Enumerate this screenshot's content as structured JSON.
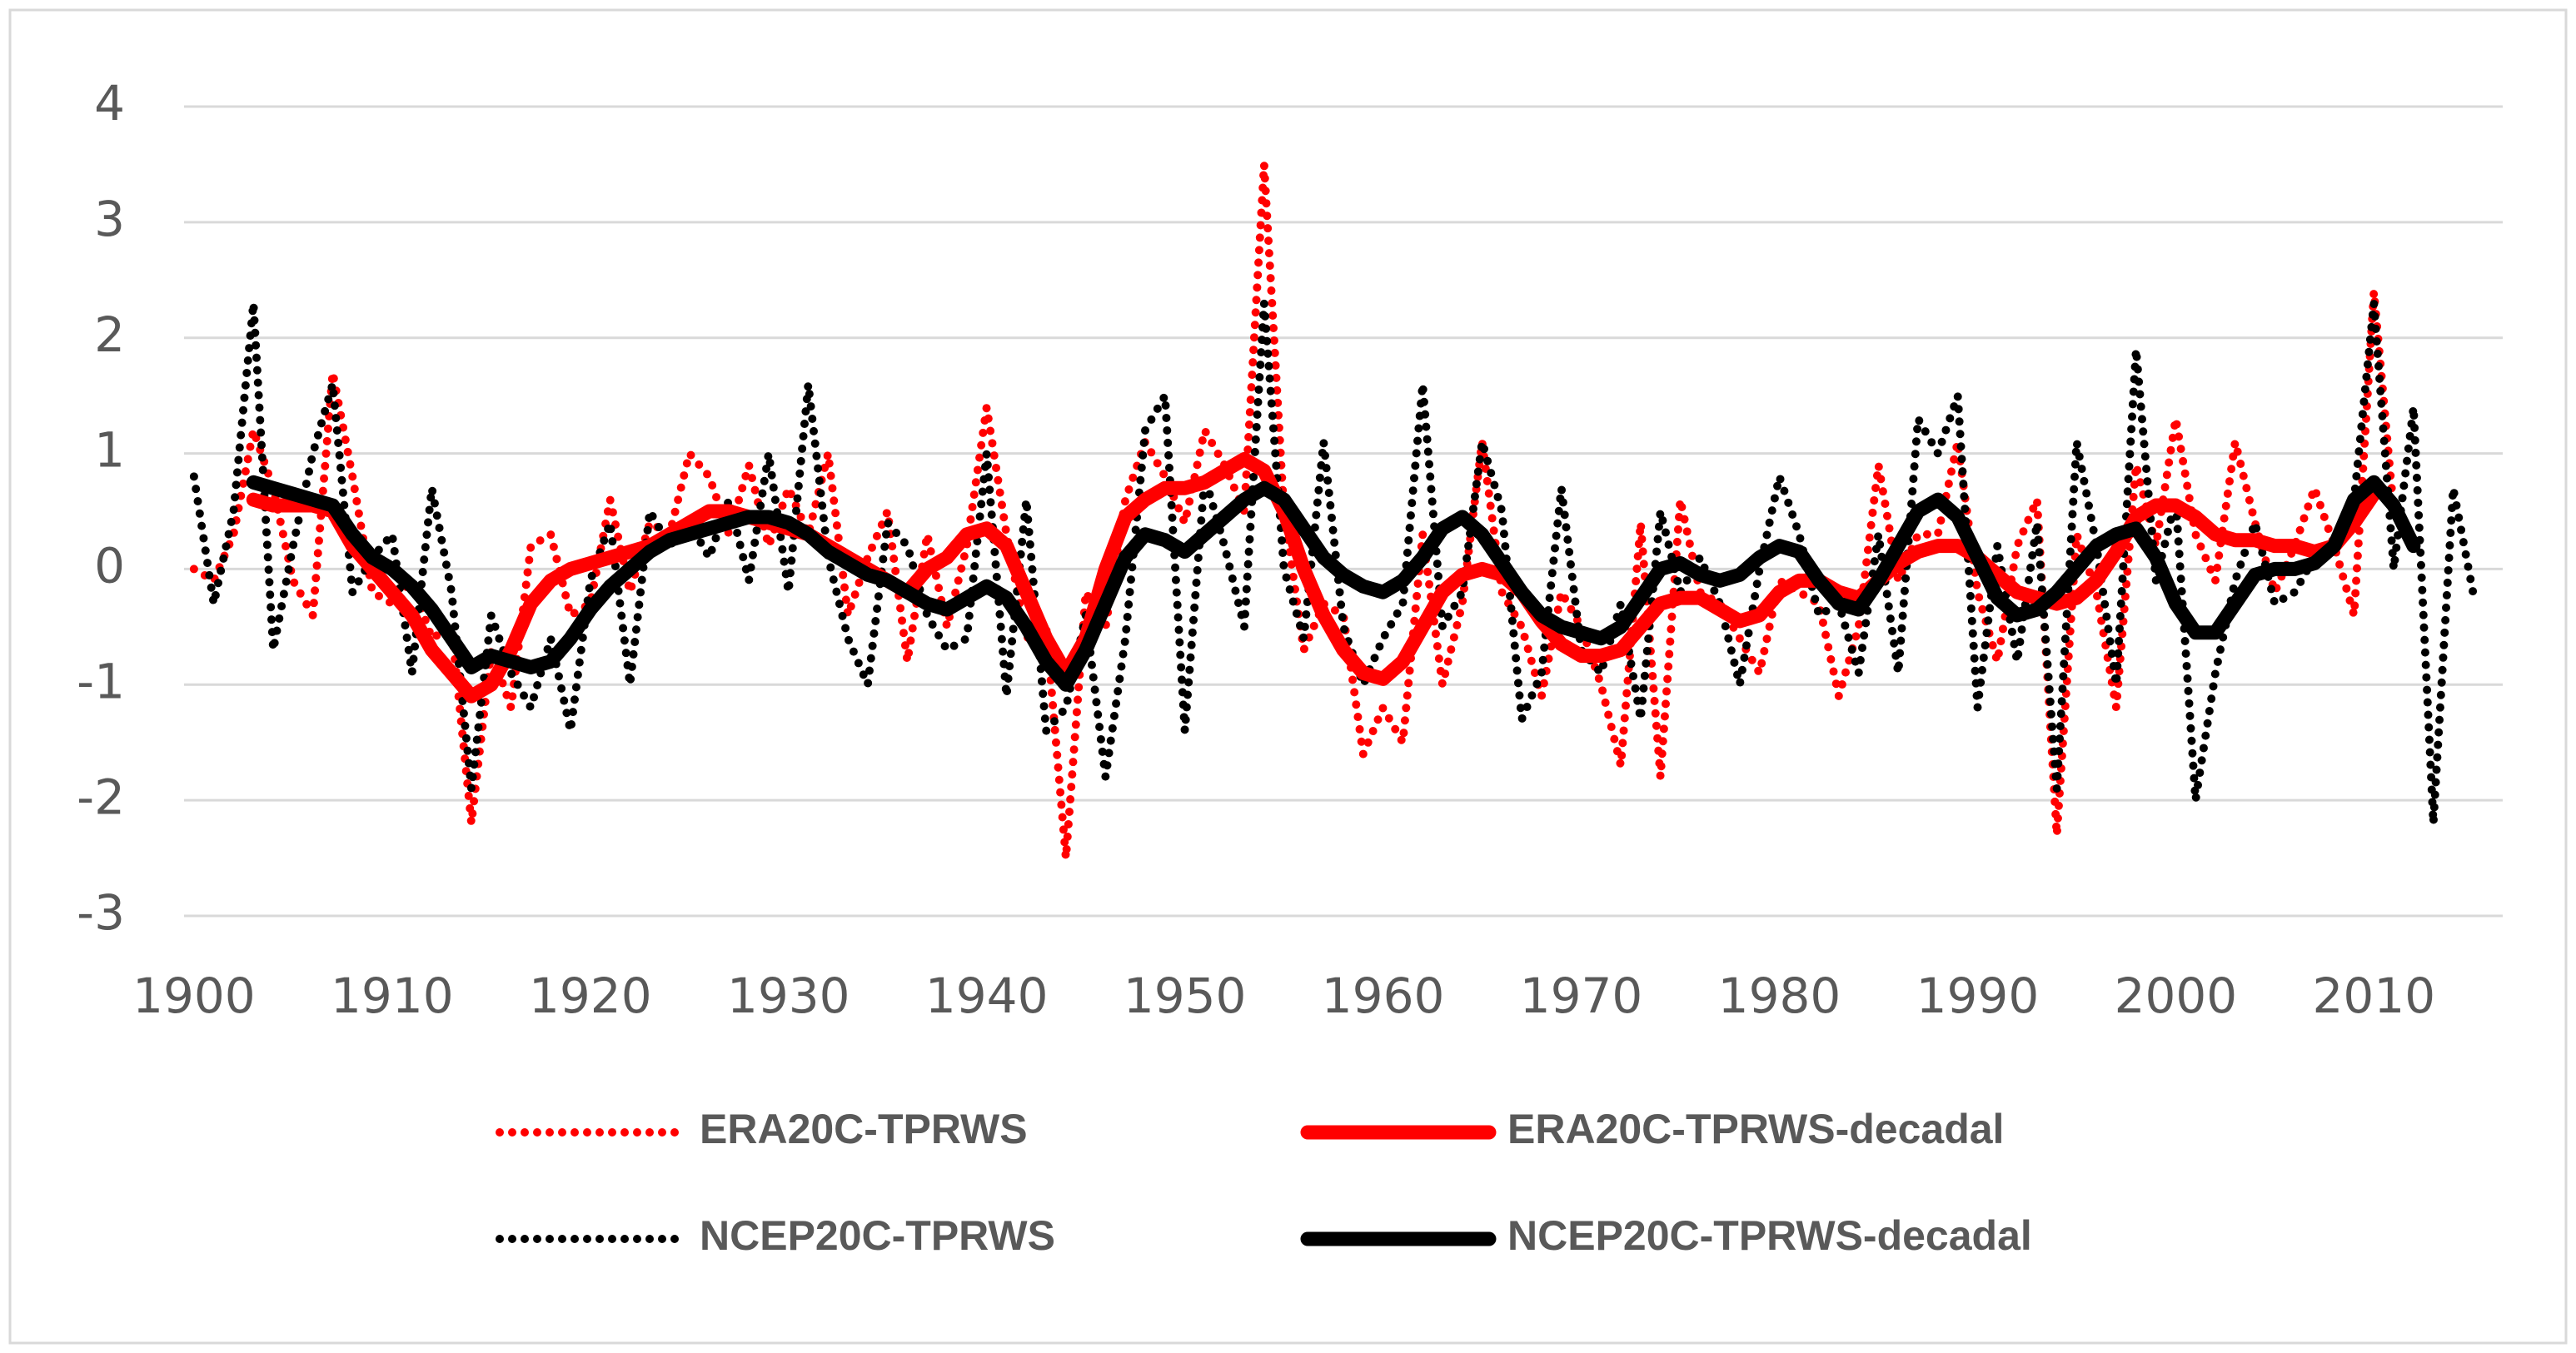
{
  "chart_data": {
    "type": "line",
    "x": [
      1900,
      1901,
      1902,
      1903,
      1904,
      1905,
      1906,
      1907,
      1908,
      1909,
      1910,
      1911,
      1912,
      1913,
      1914,
      1915,
      1916,
      1917,
      1918,
      1919,
      1920,
      1921,
      1922,
      1923,
      1924,
      1925,
      1926,
      1927,
      1928,
      1929,
      1930,
      1931,
      1932,
      1933,
      1934,
      1935,
      1936,
      1937,
      1938,
      1939,
      1940,
      1941,
      1942,
      1943,
      1944,
      1945,
      1946,
      1947,
      1948,
      1949,
      1950,
      1951,
      1952,
      1953,
      1954,
      1955,
      1956,
      1957,
      1958,
      1959,
      1960,
      1961,
      1962,
      1963,
      1964,
      1965,
      1966,
      1967,
      1968,
      1969,
      1970,
      1971,
      1972,
      1973,
      1974,
      1975,
      1976,
      1977,
      1978,
      1979,
      1980,
      1981,
      1982,
      1983,
      1984,
      1985,
      1986,
      1987,
      1988,
      1989,
      1990,
      1991,
      1992,
      1993,
      1994,
      1995,
      1996,
      1997,
      1998,
      1999,
      2000,
      2001,
      2002,
      2003,
      2004,
      2005,
      2006,
      2007,
      2008,
      2009,
      2010,
      2011,
      2012,
      2013,
      2014,
      2015
    ],
    "series": [
      {
        "name": "ERA20C-TPRWS",
        "color": "#ff0000",
        "line_style": "dotted",
        "values": [
          0.0,
          -0.1,
          0.3,
          1.2,
          0.7,
          -0.1,
          -0.4,
          1.7,
          0.8,
          -0.2,
          -0.3,
          -0.1,
          -0.6,
          -0.5,
          -2.2,
          -0.7,
          -1.2,
          0.2,
          0.3,
          -0.4,
          -0.3,
          0.6,
          -0.2,
          0.4,
          0.3,
          1.0,
          0.8,
          0.3,
          0.9,
          0.2,
          0.7,
          0.3,
          1.0,
          -0.4,
          0.1,
          0.5,
          -0.8,
          0.3,
          -0.5,
          0.2,
          1.4,
          0.3,
          -0.6,
          -0.5,
          -2.5,
          -0.2,
          -0.5,
          0.6,
          1.1,
          0.8,
          0.4,
          1.2,
          0.9,
          0.5,
          3.5,
          0.5,
          -0.7,
          -0.3,
          -0.4,
          -1.6,
          -1.2,
          -1.5,
          0.3,
          -1.0,
          -0.3,
          1.1,
          -0.2,
          -0.5,
          -1.1,
          -0.2,
          -0.5,
          -1.0,
          -1.7,
          0.4,
          -1.8,
          0.6,
          -0.2,
          -0.3,
          -0.6,
          -0.9,
          -0.1,
          -0.2,
          -0.3,
          -1.1,
          -0.5,
          0.9,
          -0.1,
          0.3,
          0.3,
          1.1,
          -0.2,
          -0.8,
          0.2,
          0.6,
          -2.3,
          0.3,
          -0.2,
          -1.2,
          0.9,
          0.2,
          1.3,
          0.3,
          -0.1,
          1.1,
          0.4,
          -0.2,
          0.2,
          0.7,
          0.2,
          -0.4,
          2.4,
          0.5,
          null,
          null,
          null,
          null
        ]
      },
      {
        "name": "ERA20C-TPRWS-decadal",
        "color": "#ff0000",
        "line_style": "solid",
        "values": [
          null,
          null,
          null,
          0.6,
          0.55,
          0.55,
          0.55,
          0.5,
          0.2,
          0.0,
          -0.2,
          -0.4,
          -0.7,
          -0.9,
          -1.1,
          -1.0,
          -0.7,
          -0.3,
          -0.1,
          0.0,
          0.05,
          0.1,
          0.15,
          0.2,
          0.3,
          0.4,
          0.5,
          0.5,
          0.45,
          0.4,
          0.35,
          0.3,
          0.2,
          0.1,
          0.0,
          -0.1,
          -0.2,
          0.0,
          0.1,
          0.3,
          0.35,
          0.2,
          -0.2,
          -0.6,
          -0.9,
          -0.6,
          0.0,
          0.45,
          0.6,
          0.7,
          0.7,
          0.75,
          0.85,
          0.95,
          0.85,
          0.5,
          0.0,
          -0.4,
          -0.7,
          -0.9,
          -0.95,
          -0.8,
          -0.5,
          -0.2,
          -0.05,
          0.0,
          -0.05,
          -0.2,
          -0.45,
          -0.65,
          -0.75,
          -0.75,
          -0.7,
          -0.5,
          -0.3,
          -0.25,
          -0.25,
          -0.35,
          -0.45,
          -0.4,
          -0.2,
          -0.1,
          -0.1,
          -0.2,
          -0.25,
          -0.1,
          0.05,
          0.15,
          0.2,
          0.2,
          0.1,
          -0.05,
          -0.2,
          -0.25,
          -0.3,
          -0.25,
          -0.1,
          0.15,
          0.45,
          0.55,
          0.55,
          0.45,
          0.3,
          0.25,
          0.25,
          0.2,
          0.2,
          0.15,
          0.2,
          0.4,
          0.65,
          null,
          null,
          null,
          null,
          null
        ]
      },
      {
        "name": "NCEP20C-TPRWS",
        "color": "#000000",
        "line_style": "dotted",
        "values": [
          0.8,
          -0.3,
          0.5,
          2.3,
          -0.7,
          0.2,
          1.0,
          1.6,
          -0.2,
          0.1,
          0.3,
          -0.9,
          0.7,
          -0.2,
          -1.9,
          -0.4,
          -0.9,
          -1.2,
          -0.6,
          -1.4,
          -0.1,
          0.4,
          -1.0,
          0.5,
          0.2,
          0.4,
          0.1,
          0.6,
          -0.1,
          1.0,
          -0.2,
          1.6,
          0.1,
          -0.6,
          -1.0,
          0.4,
          0.2,
          -0.4,
          -0.7,
          -0.6,
          1.0,
          -1.1,
          0.6,
          -1.4,
          -1.2,
          -0.4,
          -1.8,
          -0.6,
          1.2,
          1.5,
          -1.4,
          0.8,
          0.2,
          -0.5,
          2.3,
          0.0,
          -0.6,
          1.1,
          -0.5,
          -1.0,
          -0.6,
          -0.3,
          1.6,
          -0.5,
          -0.2,
          1.1,
          0.5,
          -1.3,
          -0.9,
          0.7,
          -0.7,
          -0.9,
          -0.3,
          -1.3,
          0.5,
          -0.2,
          0.1,
          -0.3,
          -1.0,
          0.0,
          0.8,
          0.3,
          -0.4,
          -0.3,
          -0.9,
          0.3,
          -0.9,
          1.3,
          1.0,
          1.5,
          -1.2,
          0.2,
          -0.8,
          0.4,
          -1.9,
          1.1,
          0.2,
          -1.0,
          1.9,
          -0.1,
          0.6,
          -2.0,
          -0.9,
          -0.1,
          0.4,
          -0.3,
          -0.2,
          0.1,
          0.2,
          0.6,
          2.3,
          0.0,
          1.4,
          -2.2,
          0.7,
          -0.2
        ]
      },
      {
        "name": "NCEP20C-TPRWS-decadal",
        "color": "#000000",
        "line_style": "solid",
        "values": [
          null,
          null,
          null,
          0.75,
          0.7,
          0.65,
          0.6,
          0.55,
          0.3,
          0.1,
          0.0,
          -0.15,
          -0.35,
          -0.6,
          -0.85,
          -0.75,
          -0.8,
          -0.85,
          -0.8,
          -0.6,
          -0.35,
          -0.15,
          0.0,
          0.15,
          0.25,
          0.3,
          0.35,
          0.4,
          0.45,
          0.45,
          0.4,
          0.3,
          0.15,
          0.05,
          -0.05,
          -0.1,
          -0.2,
          -0.3,
          -0.35,
          -0.25,
          -0.15,
          -0.25,
          -0.5,
          -0.8,
          -1.0,
          -0.7,
          -0.3,
          0.1,
          0.3,
          0.25,
          0.15,
          0.3,
          0.45,
          0.6,
          0.7,
          0.6,
          0.35,
          0.1,
          -0.05,
          -0.15,
          -0.2,
          -0.1,
          0.1,
          0.35,
          0.45,
          0.3,
          0.05,
          -0.2,
          -0.4,
          -0.5,
          -0.55,
          -0.6,
          -0.5,
          -0.25,
          0.0,
          0.05,
          -0.05,
          -0.1,
          -0.05,
          0.1,
          0.2,
          0.15,
          -0.1,
          -0.3,
          -0.35,
          -0.1,
          0.2,
          0.5,
          0.6,
          0.45,
          0.1,
          -0.25,
          -0.4,
          -0.35,
          -0.2,
          0.0,
          0.2,
          0.3,
          0.35,
          0.1,
          -0.3,
          -0.55,
          -0.55,
          -0.3,
          -0.05,
          0.0,
          0.0,
          0.05,
          0.2,
          0.6,
          0.75,
          0.55,
          0.2,
          null,
          null,
          null
        ]
      }
    ],
    "xlim": [
      1899.5,
      2016.5
    ],
    "xticks": [
      1900,
      1910,
      1920,
      1930,
      1940,
      1950,
      1960,
      1970,
      1980,
      1990,
      2000,
      2010
    ],
    "ylim": [
      -3,
      4
    ],
    "yticks": [
      -3,
      -2,
      -1,
      0,
      1,
      2,
      3,
      4
    ],
    "grid": true,
    "legend": "bottom"
  }
}
